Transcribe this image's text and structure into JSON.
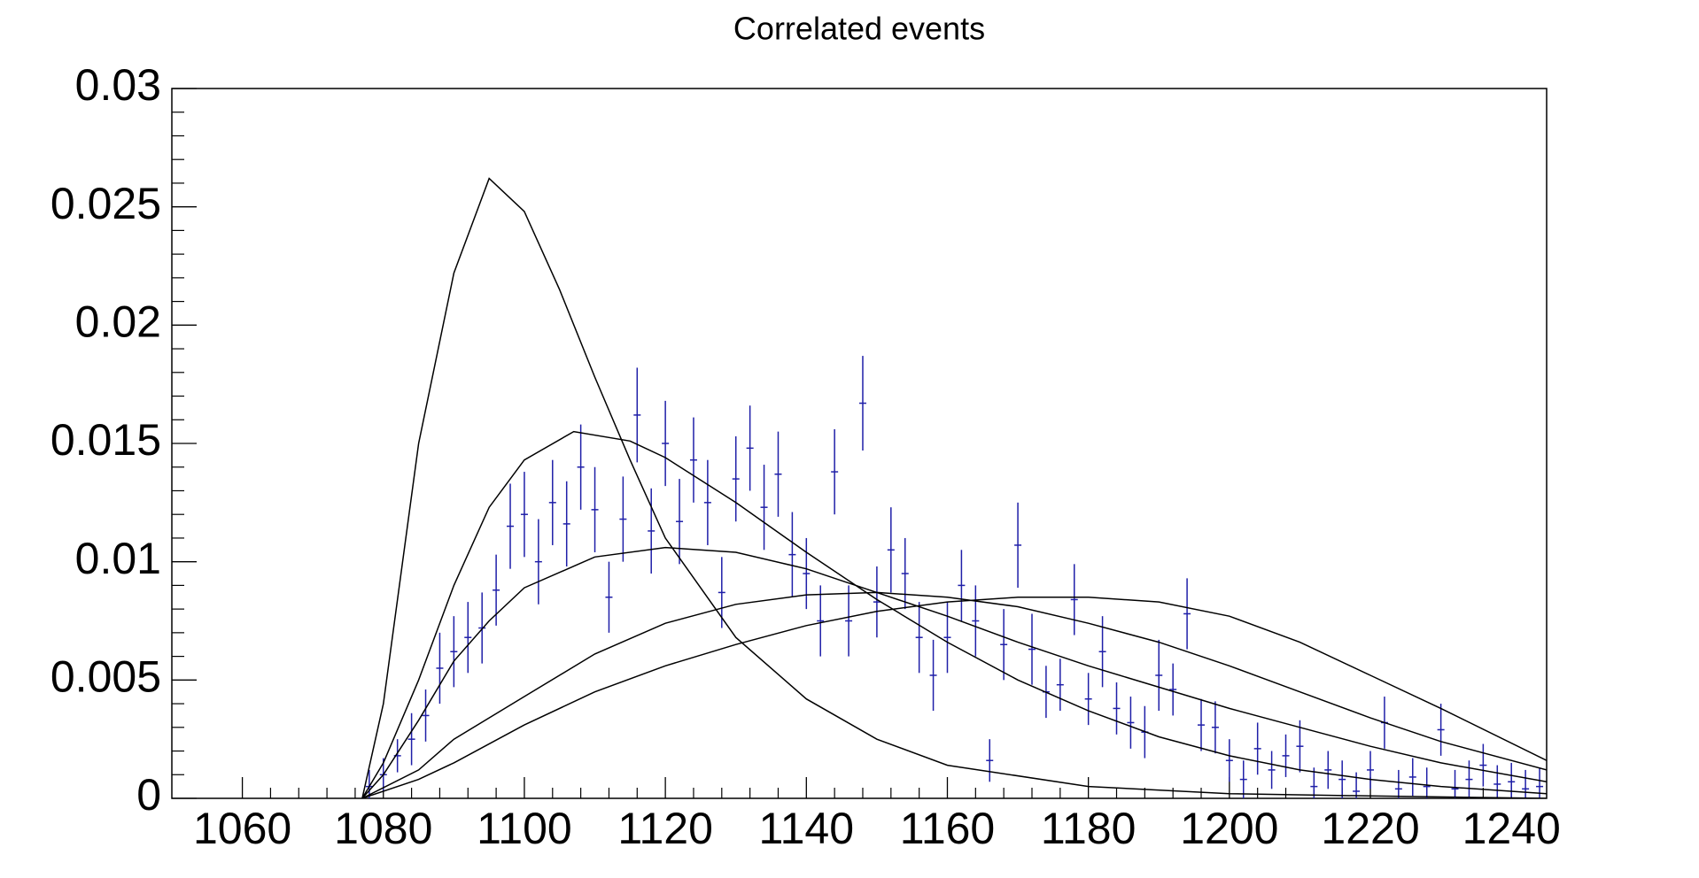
{
  "chart_data": {
    "type": "errorbar",
    "title": "Correlated events",
    "xlim": [
      1050,
      1245
    ],
    "ylim": [
      0,
      0.03
    ],
    "xticks": [
      1060,
      1080,
      1100,
      1120,
      1140,
      1160,
      1180,
      1200,
      1220,
      1240
    ],
    "yticks": [
      0,
      0.005,
      0.01,
      0.015,
      0.02,
      0.025,
      0.03
    ],
    "series": [
      {
        "color": "#1f1fa8",
        "x": [
          1078,
          1080,
          1082,
          1084,
          1086,
          1088,
          1090,
          1092,
          1094,
          1096,
          1098,
          1100,
          1102,
          1104,
          1106,
          1108,
          1110,
          1112,
          1114,
          1116,
          1118,
          1120,
          1122,
          1124,
          1126,
          1128,
          1130,
          1132,
          1134,
          1136,
          1138,
          1140,
          1142,
          1144,
          1146,
          1148,
          1150,
          1152,
          1154,
          1156,
          1158,
          1160,
          1162,
          1164,
          1166,
          1168,
          1170,
          1172,
          1174,
          1176,
          1178,
          1180,
          1182,
          1184,
          1186,
          1188,
          1190,
          1192,
          1194,
          1196,
          1198,
          1200,
          1202,
          1204,
          1206,
          1208,
          1210,
          1212,
          1214,
          1216,
          1218,
          1220,
          1222,
          1224,
          1226,
          1228,
          1230,
          1232,
          1234,
          1236,
          1238,
          1240,
          1242,
          1244,
          1246,
          1248
        ],
        "values": [
          0.0005,
          0.001,
          0.0018,
          0.0025,
          0.0035,
          0.0055,
          0.0062,
          0.0068,
          0.0072,
          0.0088,
          0.0115,
          0.012,
          0.01,
          0.0125,
          0.0116,
          0.014,
          0.0122,
          0.0085,
          0.0118,
          0.0162,
          0.0113,
          0.015,
          0.0117,
          0.0143,
          0.0125,
          0.0087,
          0.0135,
          0.0148,
          0.0123,
          0.0137,
          0.0103,
          0.0095,
          0.0075,
          0.0138,
          0.0075,
          0.0167,
          0.0083,
          0.0105,
          0.0095,
          0.0068,
          0.0052,
          0.0068,
          0.009,
          0.0075,
          0.0016,
          0.0065,
          0.0107,
          0.0063,
          0.0045,
          0.0048,
          0.0084,
          0.0042,
          0.0062,
          0.0038,
          0.0032,
          0.0028,
          0.0052,
          0.0046,
          0.0078,
          0.0031,
          0.003,
          0.0016,
          0.0008,
          0.0021,
          0.0012,
          0.0018,
          0.0022,
          0.0005,
          0.0012,
          0.0008,
          0.0003,
          0.0012,
          0.0032,
          0.0004,
          0.0009,
          0.0005,
          0.0029,
          0.0004,
          0.0008,
          0.0014,
          0.0006,
          0.0007,
          0.0004,
          0.0005,
          0.0004,
          0.0008
        ],
        "errors": [
          0.0007,
          0.0007,
          0.0007,
          0.0011,
          0.0011,
          0.0015,
          0.0015,
          0.0015,
          0.0015,
          0.0015,
          0.0018,
          0.0018,
          0.0018,
          0.0018,
          0.0018,
          0.0018,
          0.0018,
          0.0015,
          0.0018,
          0.002,
          0.0018,
          0.0018,
          0.0018,
          0.0018,
          0.0018,
          0.0015,
          0.0018,
          0.0018,
          0.0018,
          0.0018,
          0.0018,
          0.0015,
          0.0015,
          0.0018,
          0.0015,
          0.002,
          0.0015,
          0.0018,
          0.0015,
          0.0015,
          0.0015,
          0.0015,
          0.0015,
          0.0015,
          0.0009,
          0.0015,
          0.0018,
          0.0015,
          0.0011,
          0.0011,
          0.0015,
          0.0011,
          0.0015,
          0.0011,
          0.0011,
          0.0011,
          0.0015,
          0.0011,
          0.0015,
          0.0011,
          0.0011,
          0.0009,
          0.0008,
          0.0011,
          0.0008,
          0.0009,
          0.0011,
          0.0008,
          0.0008,
          0.0008,
          0.0008,
          0.0008,
          0.0011,
          0.0008,
          0.0008,
          0.0008,
          0.0011,
          0.0008,
          0.0008,
          0.0009,
          0.0008,
          0.0008,
          0.0008,
          0.0008,
          0.0008,
          0.0008
        ]
      },
      {
        "color": "#000000",
        "line": true,
        "x": [
          1077,
          1080,
          1085,
          1090,
          1095,
          1100,
          1105,
          1110,
          1115,
          1120,
          1130,
          1140,
          1150,
          1160,
          1180,
          1200,
          1220,
          1245
        ],
        "values": [
          0,
          0.004,
          0.015,
          0.0222,
          0.0262,
          0.0248,
          0.0215,
          0.0178,
          0.0143,
          0.011,
          0.0068,
          0.0042,
          0.0025,
          0.0014,
          0.0005,
          0.0002,
          0.0001,
          0
        ]
      },
      {
        "color": "#000000",
        "line": true,
        "x": [
          1077,
          1080,
          1085,
          1090,
          1095,
          1100,
          1107,
          1115,
          1120,
          1130,
          1140,
          1150,
          1160,
          1170,
          1180,
          1190,
          1200,
          1210,
          1220,
          1230,
          1245
        ],
        "values": [
          0,
          0.0015,
          0.005,
          0.009,
          0.0123,
          0.0143,
          0.0155,
          0.0151,
          0.0144,
          0.0125,
          0.0104,
          0.0084,
          0.0066,
          0.005,
          0.0037,
          0.0026,
          0.0018,
          0.0012,
          0.0008,
          0.0005,
          0.0002
        ]
      },
      {
        "color": "#000000",
        "line": true,
        "x": [
          1077,
          1080,
          1085,
          1090,
          1095,
          1100,
          1110,
          1120,
          1130,
          1140,
          1150,
          1160,
          1170,
          1180,
          1190,
          1200,
          1210,
          1220,
          1230,
          1245
        ],
        "values": [
          0,
          0.001,
          0.0033,
          0.0058,
          0.0075,
          0.0089,
          0.0102,
          0.0106,
          0.0104,
          0.0097,
          0.0087,
          0.0077,
          0.0066,
          0.0056,
          0.0047,
          0.0038,
          0.003,
          0.0022,
          0.0015,
          0.0007
        ]
      },
      {
        "color": "#000000",
        "line": true,
        "x": [
          1077,
          1085,
          1090,
          1100,
          1110,
          1120,
          1130,
          1140,
          1150,
          1160,
          1170,
          1180,
          1190,
          1200,
          1210,
          1220,
          1230,
          1245
        ],
        "values": [
          0,
          0.0012,
          0.0025,
          0.0043,
          0.0061,
          0.0074,
          0.0082,
          0.0086,
          0.0087,
          0.0085,
          0.0081,
          0.0074,
          0.0066,
          0.0056,
          0.0045,
          0.0034,
          0.0024,
          0.0012
        ]
      },
      {
        "color": "#000000",
        "line": true,
        "x": [
          1077,
          1085,
          1090,
          1100,
          1110,
          1120,
          1130,
          1140,
          1150,
          1160,
          1170,
          1180,
          1190,
          1200,
          1210,
          1220,
          1230,
          1245
        ],
        "values": [
          0,
          0.0008,
          0.0015,
          0.0031,
          0.0045,
          0.0056,
          0.0065,
          0.0073,
          0.0079,
          0.0083,
          0.0085,
          0.0085,
          0.0083,
          0.0077,
          0.0066,
          0.0052,
          0.0038,
          0.0016
        ]
      }
    ]
  }
}
